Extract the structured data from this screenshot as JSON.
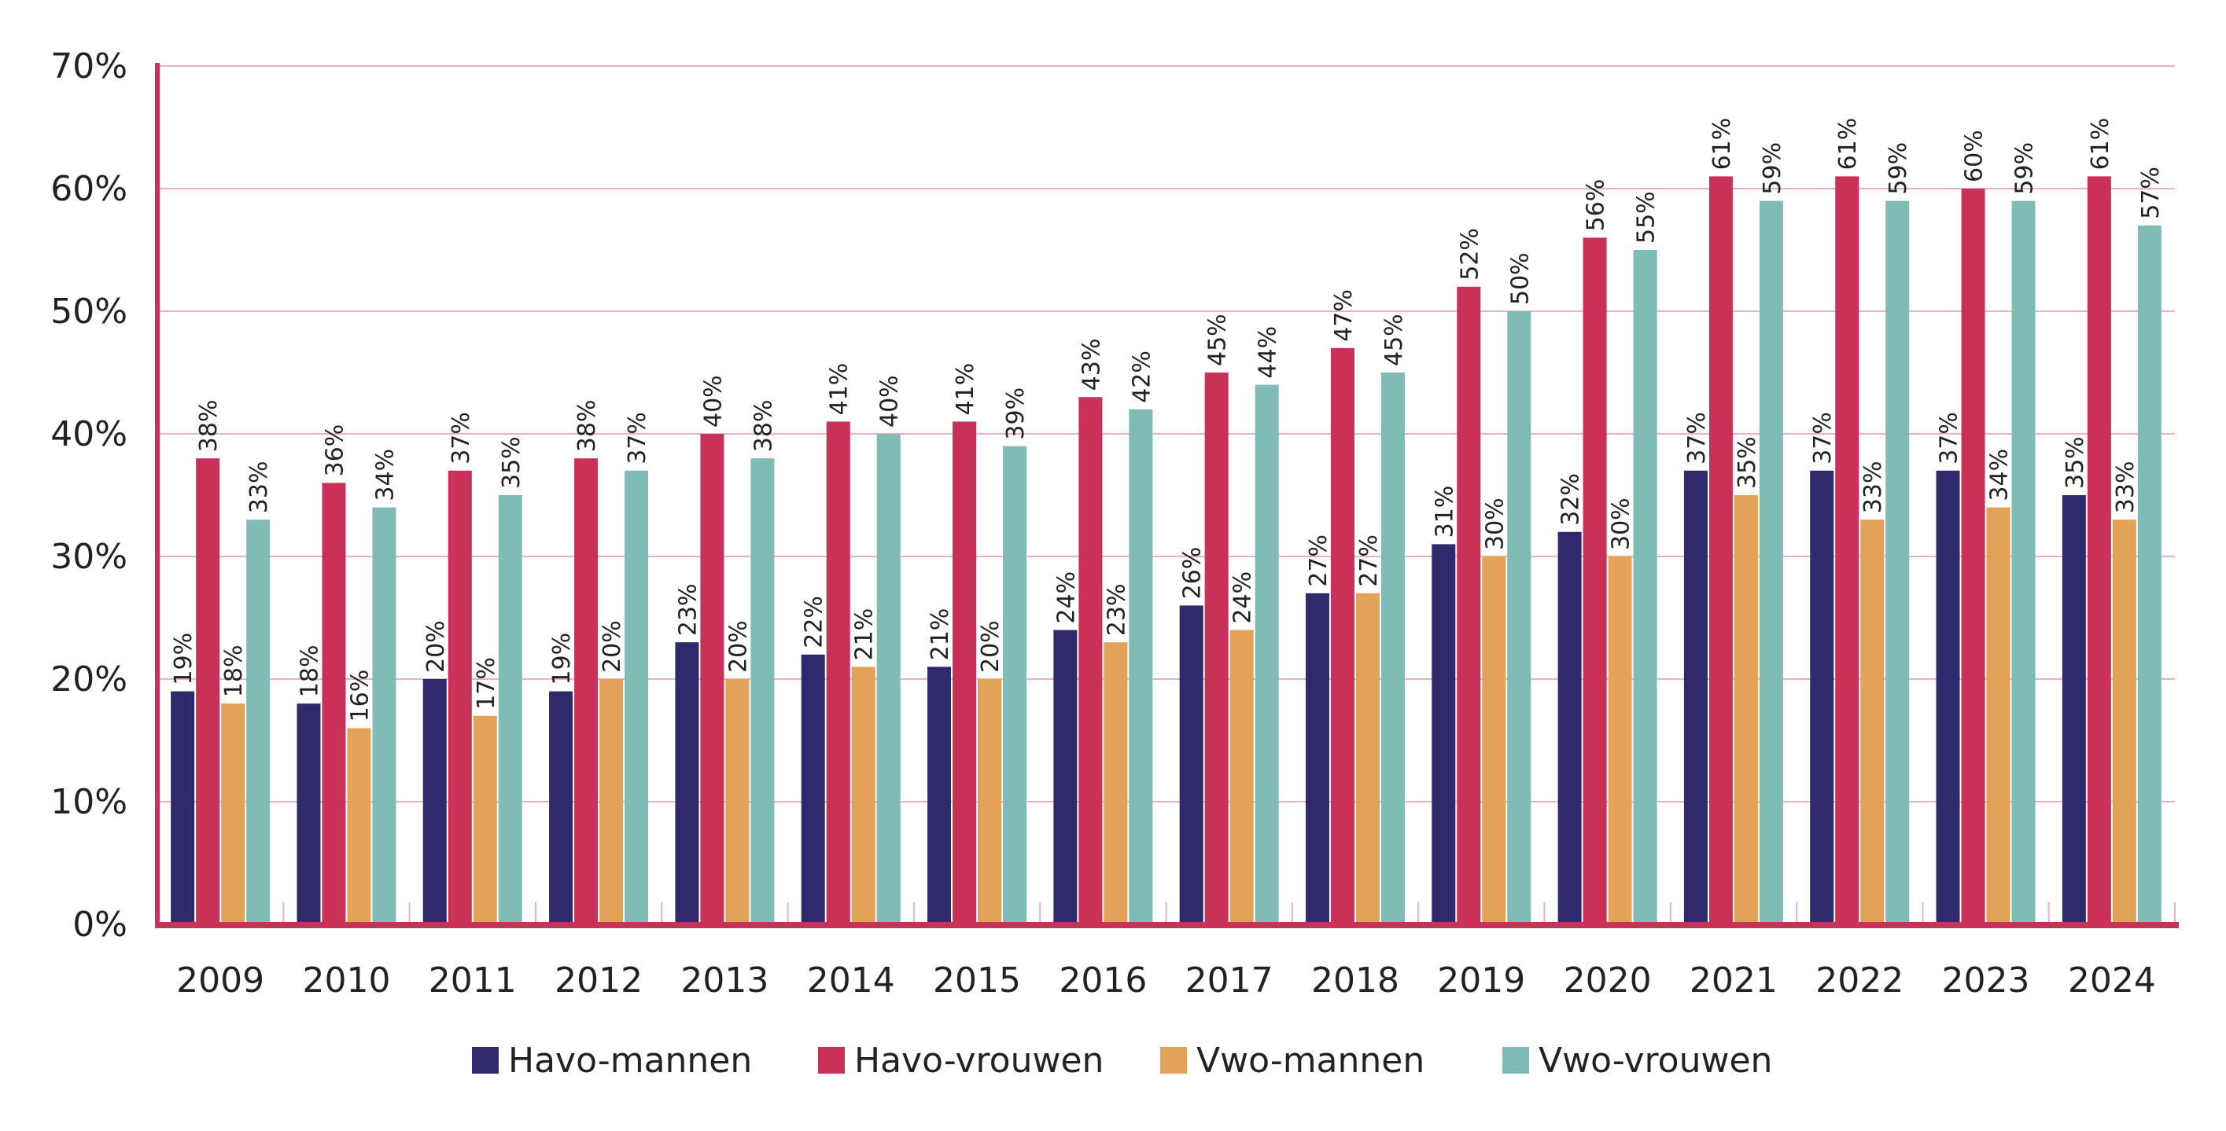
{
  "chart_data": {
    "type": "bar",
    "title": "",
    "xlabel": "",
    "ylabel": "",
    "ylim": [
      0,
      70
    ],
    "y_ticks": [
      "0%",
      "10%",
      "20%",
      "30%",
      "40%",
      "50%",
      "60%",
      "70%"
    ],
    "grid": true,
    "legend_position": "bottom",
    "categories": [
      "2009",
      "2010",
      "2011",
      "2012",
      "2013",
      "2014",
      "2015",
      "2016",
      "2017",
      "2018",
      "2019",
      "2020",
      "2021",
      "2022",
      "2023",
      "2024"
    ],
    "series": [
      {
        "name": "Havo-mannen",
        "color": "#2e2a6b",
        "values": [
          19,
          18,
          20,
          19,
          23,
          22,
          21,
          24,
          26,
          27,
          31,
          32,
          37,
          37,
          37,
          35
        ]
      },
      {
        "name": "Havo-vrouwen",
        "color": "#c93158",
        "values": [
          38,
          36,
          37,
          38,
          40,
          41,
          41,
          43,
          45,
          47,
          52,
          56,
          61,
          61,
          60,
          61
        ]
      },
      {
        "name": "Vwo-mannen",
        "color": "#e3a258",
        "values": [
          18,
          16,
          17,
          20,
          20,
          21,
          20,
          23,
          24,
          27,
          30,
          30,
          35,
          33,
          34,
          33
        ]
      },
      {
        "name": "Vwo-vrouwen",
        "color": "#7ebcb5",
        "values": [
          33,
          34,
          35,
          37,
          38,
          40,
          39,
          42,
          44,
          45,
          50,
          55,
          59,
          59,
          59,
          57
        ]
      }
    ],
    "value_suffix": "%",
    "axis_color": "#c93158",
    "grid_color": "#e7b3c3"
  }
}
